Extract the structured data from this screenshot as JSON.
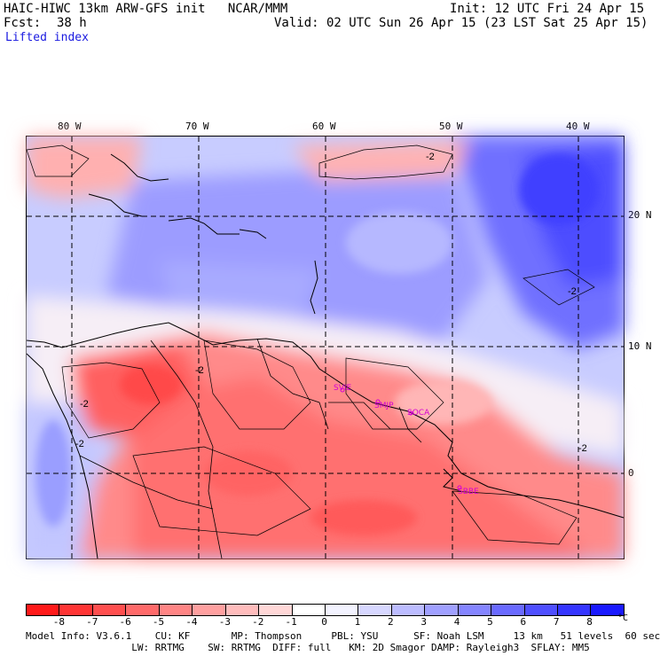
{
  "header": {
    "title": "HAIC-HIWC 13km ARW-GFS init   NCAR/MMM",
    "init": "Init: 12 UTC Fri 24 Apr 15",
    "fcst_label": "Fcst:",
    "fcst_value": "38 h",
    "valid": "Valid: 02 UTC Sun 26 Apr 15 (23 LST Sat 25 Apr 15)",
    "field": "Lifted index"
  },
  "map": {
    "lon_labels": [
      "80 W",
      "70 W",
      "60 W",
      "50 W",
      "40 W"
    ],
    "lat_labels": [
      "20 N",
      "10 N",
      "0"
    ],
    "contour_labels": [
      "-2",
      "-2",
      "-2",
      "-2",
      "-2",
      "-2"
    ],
    "stations": [
      "SVIE",
      "SMJP",
      "SOCA",
      "SBBE"
    ]
  },
  "colorbar": {
    "labels": [
      "-8",
      "-7",
      "-6",
      "-5",
      "-4",
      "-3",
      "-2",
      "-1",
      "0",
      "1",
      "2",
      "3",
      "4",
      "5",
      "6",
      "7",
      "8"
    ],
    "unit": "°C",
    "colors": [
      "#ff1a1a",
      "#ff3535",
      "#ff4f4f",
      "#ff6a6a",
      "#ff8585",
      "#ffa0a0",
      "#ffbcbc",
      "#ffd7d7",
      "#f3f3ff",
      "#d7d7ff",
      "#bcbcff",
      "#a0a0ff",
      "#8585ff",
      "#6a6aff",
      "#4f4fff",
      "#3535ff",
      "#1a1aff"
    ]
  },
  "footer": {
    "line1": "Model Info: V3.6.1    CU: KF       MP: Thompson     PBL: YSU      SF: Noah LSM     13 km   51 levels  60 sec",
    "line2": "                  LW: RRTMG    SW: RRTMG  DIFF: full   KM: 2D Smagor DAMP: Rayleigh3  SFLAY: MM5"
  }
}
